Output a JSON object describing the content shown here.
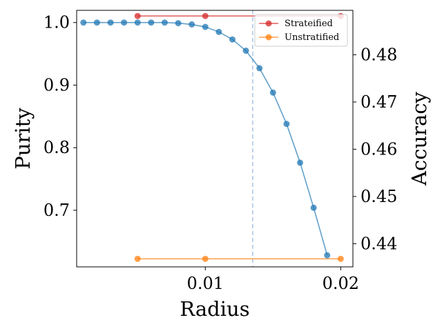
{
  "chart_data": {
    "type": "line",
    "xlabel": "Radius",
    "ylabel_left": "Purity",
    "ylabel_right": "Accuracy",
    "xlim": [
      0.0005,
      0.0209
    ],
    "ylim_left": [
      0.6095,
      1.0195
    ],
    "ylim_right": [
      0.4351,
      0.4894
    ],
    "x_ticks": [
      {
        "value": 0.01,
        "label": "0.01"
      },
      {
        "value": 0.02,
        "label": "0.02"
      }
    ],
    "y_left_ticks": [
      {
        "value": 0.7,
        "label": "0.7"
      },
      {
        "value": 0.8,
        "label": "0.8"
      },
      {
        "value": 0.9,
        "label": "0.9"
      },
      {
        "value": 1.0,
        "label": "1.0"
      }
    ],
    "y_right_ticks": [
      {
        "value": 0.44,
        "label": "0.44"
      },
      {
        "value": 0.45,
        "label": "0.45"
      },
      {
        "value": 0.46,
        "label": "0.46"
      },
      {
        "value": 0.47,
        "label": "0.47"
      },
      {
        "value": 0.48,
        "label": "0.48"
      }
    ],
    "vline": {
      "x": 0.0135,
      "color": "#aec7e8",
      "style": "dashed"
    },
    "legend_position": "top-right",
    "series": [
      {
        "name": "Strateified",
        "axis": "right",
        "color": "#d62728",
        "x": [
          0.005,
          0.01,
          0.02
        ],
        "y": [
          0.4882,
          0.4882,
          0.4882
        ]
      },
      {
        "name": "Unstratified",
        "axis": "right",
        "color": "#ff7f0e",
        "x": [
          0.005,
          0.01,
          0.02
        ],
        "y": [
          0.4368,
          0.4368,
          0.4368
        ]
      },
      {
        "axis": "left",
        "color": "#1f77b4",
        "x": [
          0.001,
          0.002,
          0.003,
          0.004,
          0.005,
          0.006,
          0.007,
          0.008,
          0.009,
          0.01,
          0.011,
          0.012,
          0.013,
          0.014,
          0.015,
          0.016,
          0.017,
          0.018,
          0.019
        ],
        "y": [
          1.0,
          1.0,
          1.0,
          1.0,
          1.0,
          1.0,
          1.0,
          0.999,
          0.997,
          0.993,
          0.985,
          0.973,
          0.955,
          0.927,
          0.888,
          0.838,
          0.776,
          0.704,
          0.628
        ]
      }
    ]
  }
}
